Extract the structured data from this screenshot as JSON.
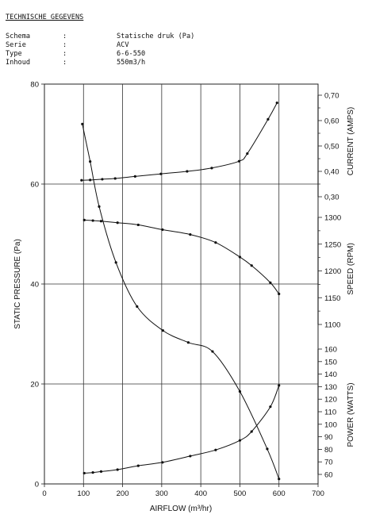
{
  "header": {
    "title": "TECHNISCHE GEGEVENS",
    "specs": [
      {
        "label": "Schema",
        "colon": ":",
        "value": "Statische druk (Pa)"
      },
      {
        "label": "Serie",
        "colon": ":",
        "value": "ACV"
      },
      {
        "label": "Type",
        "colon": ":",
        "value": "6-6-550"
      },
      {
        "label": "Inhoud",
        "colon": ":",
        "value": "550m3/h"
      }
    ]
  },
  "chart_data": {
    "type": "line",
    "xlabel": "AIRFLOW (m³/hr)",
    "xlim": [
      0,
      700
    ],
    "x_ticks": [
      "0",
      "100",
      "200",
      "300",
      "400",
      "500",
      "600",
      "700"
    ],
    "grid": true,
    "axes": {
      "pressure": {
        "label": "STATIC PRESSURE (Pa)",
        "side": "left",
        "range": [
          0,
          80
        ],
        "ticks": [
          "0",
          "20",
          "40",
          "60",
          "80"
        ]
      },
      "current": {
        "label": "CURRENT (AMPS)",
        "side": "right",
        "range": [
          0.3,
          0.7
        ],
        "ticks": [
          "0,30",
          "0,40",
          "0,50",
          "0,60",
          "0,70"
        ],
        "minor_ticks": [
          "0,35",
          "0,45",
          "0,55",
          "0,65"
        ]
      },
      "speed": {
        "label": "SPEED (RPM)",
        "side": "right",
        "range": [
          1100,
          1300
        ],
        "ticks": [
          "1100",
          "1150",
          "1200",
          "1250",
          "1300"
        ],
        "minor_ticks": [
          "1125",
          "1175",
          "1225",
          "1275"
        ]
      },
      "power": {
        "label": "POWER (WATTS)",
        "side": "right",
        "range": [
          60,
          160
        ],
        "ticks": [
          "60",
          "70",
          "80",
          "90",
          "100",
          "110",
          "120",
          "130",
          "140",
          "150",
          "160"
        ]
      }
    },
    "series": [
      {
        "axis": "pressure",
        "points": [
          [
            97,
            72
          ],
          [
            117,
            64.5
          ],
          [
            140,
            55.5
          ],
          [
            183,
            44.3
          ],
          [
            237,
            35.5
          ],
          [
            303,
            30.7
          ],
          [
            368,
            28.3
          ],
          [
            430,
            26.5
          ],
          [
            500,
            18.5
          ],
          [
            570,
            7
          ],
          [
            600,
            1
          ]
        ]
      },
      {
        "axis": "current",
        "points": [
          [
            95,
            0.365
          ],
          [
            117,
            0.366
          ],
          [
            148,
            0.369
          ],
          [
            181,
            0.372
          ],
          [
            232,
            0.38
          ],
          [
            298,
            0.39
          ],
          [
            365,
            0.4
          ],
          [
            428,
            0.413
          ],
          [
            498,
            0.44
          ],
          [
            519,
            0.47
          ],
          [
            572,
            0.605
          ],
          [
            595,
            0.67
          ]
        ]
      },
      {
        "axis": "speed",
        "points": [
          [
            102,
            1295
          ],
          [
            124,
            1294
          ],
          [
            145,
            1293
          ],
          [
            187,
            1290
          ],
          [
            240,
            1286
          ],
          [
            302,
            1277
          ],
          [
            373,
            1268
          ],
          [
            438,
            1253
          ],
          [
            500,
            1226
          ],
          [
            530,
            1210
          ],
          [
            578,
            1178
          ],
          [
            600,
            1157
          ]
        ]
      },
      {
        "axis": "power",
        "points": [
          [
            102,
            61
          ],
          [
            124,
            61.5
          ],
          [
            145,
            62.3
          ],
          [
            187,
            63.8
          ],
          [
            240,
            66.9
          ],
          [
            302,
            69.6
          ],
          [
            373,
            74.6
          ],
          [
            438,
            79.5
          ],
          [
            500,
            87.1
          ],
          [
            530,
            94.2
          ],
          [
            578,
            114
          ],
          [
            600,
            131
          ]
        ]
      }
    ]
  }
}
